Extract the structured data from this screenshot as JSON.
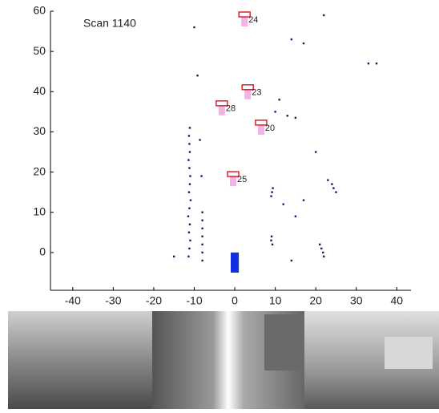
{
  "chart_data": {
    "type": "scatter",
    "annotation": "Scan 1140",
    "xlim": [
      -45.5,
      43.5
    ],
    "ylim": [
      -9.4,
      60
    ],
    "xticks": [
      -40,
      -30,
      -20,
      -10,
      0,
      10,
      20,
      30,
      40
    ],
    "yticks": [
      0,
      10,
      20,
      30,
      40,
      50,
      60
    ],
    "series": [
      {
        "color": "#1a1a6e",
        "x": [
          -11.4,
          -11.2,
          -11.0,
          -11.3,
          -11.1,
          -11.5,
          -11.2,
          -10.9,
          -11.3,
          -11.1,
          -11.0,
          -11.2,
          -11.4,
          -11.1,
          -11.2,
          -11.3,
          -11.1,
          -8,
          -8,
          -8,
          -8,
          -8,
          -8,
          -8,
          -8.2,
          -8.6,
          -9.2,
          9,
          9.2,
          9.4,
          9.1,
          9.0,
          9.3,
          12,
          17,
          10,
          11,
          13,
          15,
          21,
          21.4,
          21.8,
          22,
          24,
          24.4,
          25,
          23,
          20,
          14,
          17,
          22,
          -10,
          33,
          35,
          14,
          15,
          -15
        ],
        "y": [
          -1,
          1,
          3,
          5,
          7,
          9,
          11,
          13,
          15,
          17,
          19,
          21,
          23,
          25,
          27,
          29,
          31,
          -2,
          0,
          2,
          4,
          6,
          8,
          10,
          19,
          28,
          44,
          14,
          15,
          16,
          4,
          3,
          2,
          12,
          13,
          35,
          38,
          34,
          33.5,
          2,
          1,
          0,
          -1,
          17,
          16,
          15,
          18,
          25,
          53,
          52,
          59,
          56,
          47,
          47,
          -2,
          9,
          -1
        ]
      }
    ],
    "tracks": {
      "color": "#e0202a",
      "labels": [
        "24",
        "23",
        "28",
        "20",
        "25"
      ],
      "x": [
        2.4,
        3.2,
        -3.2,
        6.5,
        -0.4
      ],
      "y": [
        59.2,
        41.1,
        37.1,
        32.3,
        19.5
      ]
    },
    "vehicle": {
      "color": "#1030e0",
      "x": [
        -1,
        1
      ],
      "y": [
        -5,
        0
      ]
    }
  }
}
